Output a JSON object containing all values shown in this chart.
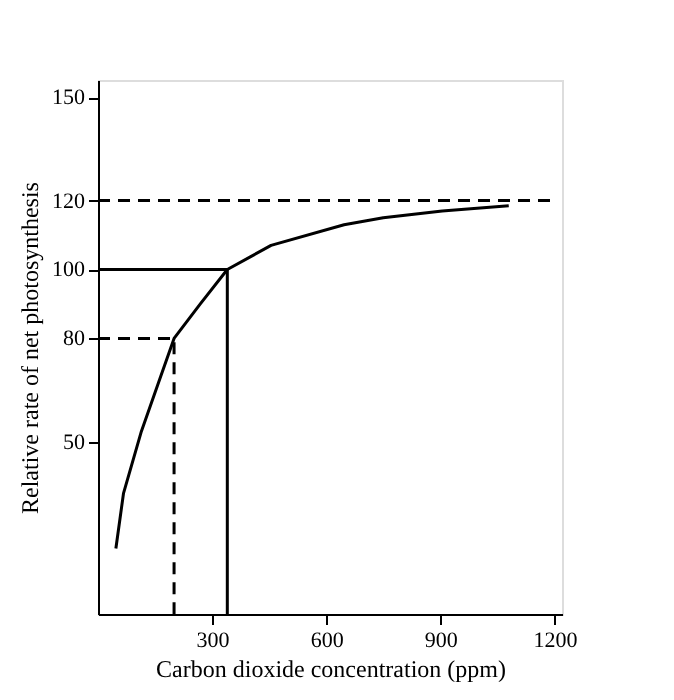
{
  "chart_data": {
    "type": "line",
    "xlabel": "Carbon dioxide concentration (ppm)",
    "ylabel": "Relative rate of net photosynthesis",
    "xlim": [
      0,
      1220
    ],
    "ylim": [
      0,
      155
    ],
    "xticks": [
      300,
      600,
      900,
      1200
    ],
    "yticks": [
      50,
      80,
      100,
      120,
      150
    ],
    "grid": false,
    "marker": "none",
    "series": [
      {
        "color": "#000000",
        "line_style": "solid",
        "x": [
          47,
          67,
          114,
          165,
          200,
          269,
          340,
          455,
          647,
          750,
          905,
          1080
        ],
        "values": [
          19,
          35,
          53,
          69,
          80,
          90,
          100,
          107,
          113,
          115,
          117,
          118.5
        ]
      },
      {
        "color": "#000000",
        "line_style": "dashed",
        "x": [
          0,
          1200
        ],
        "values": [
          120,
          120
        ]
      },
      {
        "color": "#000000",
        "line_style": "solid",
        "x": [
          0,
          340,
          340
        ],
        "values": [
          100,
          100,
          0
        ]
      },
      {
        "color": "#000000",
        "line_style": "dashed",
        "x": [
          0,
          200,
          200
        ],
        "values": [
          80,
          80,
          0
        ]
      }
    ]
  }
}
